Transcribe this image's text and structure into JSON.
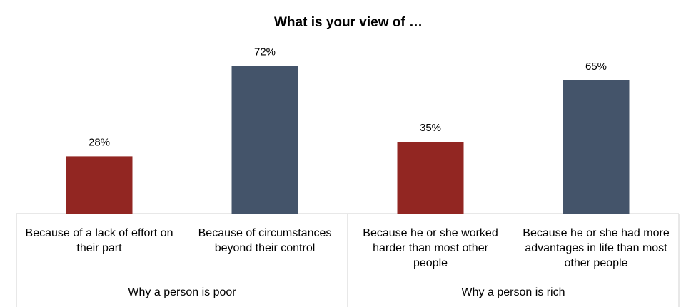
{
  "chart_data": {
    "type": "bar",
    "title": "What is your view of …",
    "xlabel": "",
    "ylabel": "",
    "ylim": [
      0,
      75
    ],
    "grid": false,
    "legend": "none",
    "groups": [
      {
        "label": "Why a person is poor",
        "bars": [
          {
            "category_lines": [
              "Because of a lack of effort on",
              "their part"
            ],
            "value": 28,
            "label": "28%",
            "color": "#922622"
          },
          {
            "category_lines": [
              "Because of circumstances",
              "beyond their control"
            ],
            "value": 72,
            "label": "72%",
            "color": "#44546a"
          }
        ]
      },
      {
        "label": "Why a person is rich",
        "bars": [
          {
            "category_lines": [
              "Because he or she worked",
              "harder than most other",
              "people"
            ],
            "value": 35,
            "label": "35%",
            "color": "#922622"
          },
          {
            "category_lines": [
              "Because he or she had more",
              "advantages in life than most",
              "other people"
            ],
            "value": 65,
            "label": "65%",
            "color": "#44546a"
          }
        ]
      }
    ]
  }
}
